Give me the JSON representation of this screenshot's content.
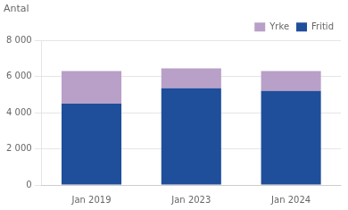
{
  "chart_data": {
    "type": "bar",
    "ylabel": "Antal",
    "categories": [
      "Jan 2019",
      "Jan 2023",
      "Jan 2024"
    ],
    "series": [
      {
        "name": "Fritid",
        "color": "#1F4E9B",
        "values": [
          4500,
          5350,
          5200
        ]
      },
      {
        "name": "Yrke",
        "color": "#B8A0C8",
        "values": [
          1800,
          1100,
          1100
        ]
      }
    ],
    "stacked": true,
    "ylim": [
      0,
      8000
    ],
    "yticks": [
      0,
      {
        "value": 2000,
        "label": "2 000"
      },
      {
        "value": 4000,
        "label": "4 000"
      },
      {
        "value": 6000,
        "label": "6 000"
      },
      {
        "value": 8000,
        "label": "8 000"
      }
    ],
    "grid": true,
    "legend": "upper right"
  }
}
